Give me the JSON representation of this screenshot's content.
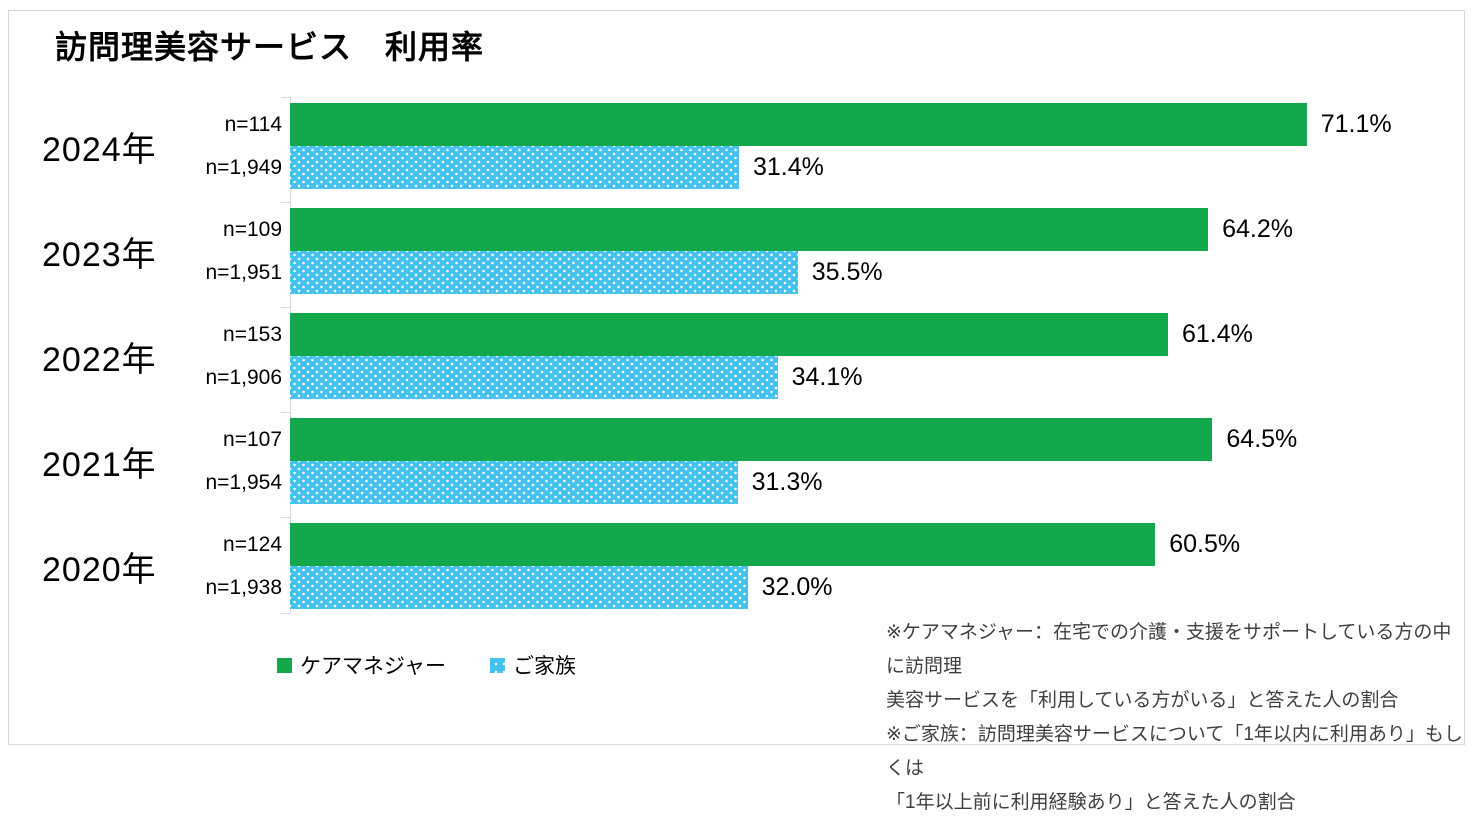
{
  "title": "訪問理美容サービス　利用率",
  "colors": {
    "care_manager": "#14A84C",
    "family": "#45C1F0",
    "axis_line": "#D9D9D9"
  },
  "chart_data": {
    "type": "bar",
    "orientation": "horizontal",
    "title": "訪問理美容サービス　利用率",
    "categories": [
      "2024年",
      "2023年",
      "2022年",
      "2021年",
      "2020年"
    ],
    "series": [
      {
        "name": "ケアマネジャー",
        "color": "#14A84C",
        "pattern": "solid",
        "values": [
          71.1,
          64.2,
          61.4,
          64.5,
          60.5
        ],
        "value_labels": [
          "71.1%",
          "64.2%",
          "61.4%",
          "64.5%",
          "60.5%"
        ],
        "sample_labels": [
          "n=114",
          "n=109",
          "n=153",
          "n=107",
          "n=124"
        ]
      },
      {
        "name": "ご家族",
        "color": "#45C1F0",
        "pattern": "white-dots",
        "values": [
          31.4,
          35.5,
          34.1,
          31.3,
          32.0
        ],
        "value_labels": [
          "31.4%",
          "35.5%",
          "34.1%",
          "31.3%",
          "32.0%"
        ],
        "sample_labels": [
          "n=1,949",
          "n=1,951",
          "n=1,906",
          "n=1,954",
          "n=1,938"
        ]
      }
    ],
    "xlim": [
      0,
      80
    ],
    "value_suffix": "%",
    "grid": false,
    "legend_position": "bottom-left"
  },
  "footnote": {
    "lines": [
      "※ケアマネジャー：在宅での介護・支援をサポートしている方の中に訪問理",
      "美容サービスを「利用している方がいる」と答えた人の割合",
      "※ご家族：訪問理美容サービスについて「1年以内に利用あり」もしくは",
      "「1年以上前に利用経験あり」と答えた人の割合"
    ]
  }
}
